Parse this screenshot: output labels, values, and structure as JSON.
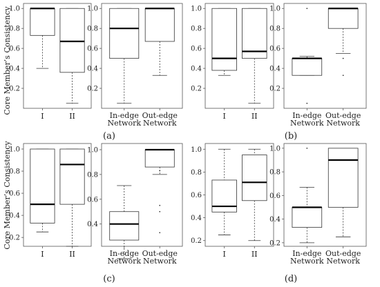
{
  "figure": {
    "ylabel": "Core Member’s Consistency",
    "panel_labels": [
      "(a)",
      "(b)",
      "(c)",
      "(d)"
    ]
  },
  "chart_data": [
    {
      "type": "boxplot",
      "ylim": [
        0,
        1.05
      ],
      "yticks": [
        "0.2",
        "0.4",
        "0.6",
        "0.8",
        "1.0"
      ],
      "categories": [
        "I",
        "II"
      ],
      "boxes": [
        {
          "lower_whisker": 0.4,
          "q1": 0.73,
          "median": 1.0,
          "q3": 1.0,
          "upper_whisker": 1.0,
          "outliers": []
        },
        {
          "lower_whisker": 0.05,
          "q1": 0.36,
          "median": 0.67,
          "q3": 1.0,
          "upper_whisker": 1.0,
          "outliers": []
        }
      ]
    },
    {
      "type": "boxplot",
      "ylim": [
        0,
        1.05
      ],
      "yticks": [
        "0.2",
        "0.4",
        "0.6",
        "0.8",
        "1.0"
      ],
      "categories": [
        [
          "In-edge",
          "Network"
        ],
        [
          "Out-edge",
          "Network"
        ]
      ],
      "boxes": [
        {
          "lower_whisker": 0.05,
          "q1": 0.5,
          "median": 0.8,
          "q3": 1.0,
          "upper_whisker": 1.0,
          "outliers": []
        },
        {
          "lower_whisker": 0.33,
          "q1": 0.67,
          "median": 1.0,
          "q3": 1.0,
          "upper_whisker": 1.0,
          "outliers": []
        }
      ]
    },
    {
      "type": "boxplot",
      "ylim": [
        0,
        1.05
      ],
      "yticks": [
        "0.2",
        "0.4",
        "0.6",
        "0.8",
        "1.0"
      ],
      "categories": [
        "I",
        "II"
      ],
      "boxes": [
        {
          "lower_whisker": 0.33,
          "q1": 0.38,
          "median": 0.5,
          "q3": 1.0,
          "upper_whisker": 1.0,
          "outliers": []
        },
        {
          "lower_whisker": 0.05,
          "q1": 0.5,
          "median": 0.57,
          "q3": 1.0,
          "upper_whisker": 1.0,
          "outliers": []
        }
      ]
    },
    {
      "type": "boxplot",
      "ylim": [
        0,
        1.05
      ],
      "yticks": [
        "0.2",
        "0.4",
        "0.6",
        "0.8",
        "1.0"
      ],
      "categories": [
        [
          "In-edge",
          "Network"
        ],
        [
          "Out-edge",
          "Network"
        ]
      ],
      "boxes": [
        {
          "lower_whisker": 0.33,
          "q1": 0.33,
          "median": 0.5,
          "q3": 0.5,
          "upper_whisker": 0.52,
          "outliers": [
            1.0,
            0.05
          ]
        },
        {
          "lower_whisker": 0.55,
          "q1": 0.8,
          "median": 1.0,
          "q3": 1.0,
          "upper_whisker": 1.0,
          "outliers": [
            0.5,
            0.33
          ]
        }
      ]
    },
    {
      "type": "boxplot",
      "ylim": [
        0.12,
        1.05
      ],
      "yticks": [
        "0.2",
        "0.4",
        "0.6",
        "0.8",
        "1.0"
      ],
      "categories": [
        "I",
        "II"
      ],
      "boxes": [
        {
          "lower_whisker": 0.25,
          "q1": 0.33,
          "median": 0.5,
          "q3": 1.0,
          "upper_whisker": 1.0,
          "outliers": []
        },
        {
          "lower_whisker": 0.12,
          "q1": 0.5,
          "median": 0.86,
          "q3": 1.0,
          "upper_whisker": 1.0,
          "outliers": []
        }
      ]
    },
    {
      "type": "boxplot",
      "ylim": [
        0.22,
        1.05
      ],
      "yticks": [
        "0.4",
        "0.6",
        "0.8",
        "1.0"
      ],
      "categories": [
        [
          "In-edge",
          "Network"
        ],
        [
          "Out-edge",
          "Network"
        ]
      ],
      "boxes": [
        {
          "lower_whisker": 0.12,
          "q1": 0.27,
          "median": 0.4,
          "q3": 0.5,
          "upper_whisker": 0.71,
          "outliers": []
        },
        {
          "lower_whisker": 0.8,
          "q1": 0.86,
          "median": 1.0,
          "q3": 1.0,
          "upper_whisker": 1.0,
          "outliers": [
            0.83,
            0.55,
            0.5,
            0.33
          ]
        }
      ]
    },
    {
      "type": "boxplot",
      "ylim": [
        0.15,
        1.05
      ],
      "yticks": [
        "0.2",
        "0.4",
        "0.6",
        "0.8",
        "1.0"
      ],
      "categories": [
        "I",
        "II"
      ],
      "boxes": [
        {
          "lower_whisker": 0.25,
          "q1": 0.45,
          "median": 0.5,
          "q3": 0.73,
          "upper_whisker": 1.0,
          "outliers": []
        },
        {
          "lower_whisker": 0.2,
          "q1": 0.55,
          "median": 0.71,
          "q3": 0.95,
          "upper_whisker": 1.0,
          "outliers": []
        }
      ]
    },
    {
      "type": "boxplot",
      "ylim": [
        0.17,
        1.04
      ],
      "yticks": [
        "0.2",
        "0.4",
        "0.6",
        "0.8",
        "1.0"
      ],
      "categories": [
        [
          "In-edge",
          "Network"
        ],
        [
          "Out-edge",
          "Network"
        ]
      ],
      "boxes": [
        {
          "lower_whisker": 0.2,
          "q1": 0.33,
          "median": 0.5,
          "q3": 0.5,
          "upper_whisker": 0.67,
          "outliers": [
            1.0
          ]
        },
        {
          "lower_whisker": 0.25,
          "q1": 0.5,
          "median": 0.9,
          "q3": 1.0,
          "upper_whisker": 1.0,
          "outliers": []
        }
      ]
    }
  ]
}
